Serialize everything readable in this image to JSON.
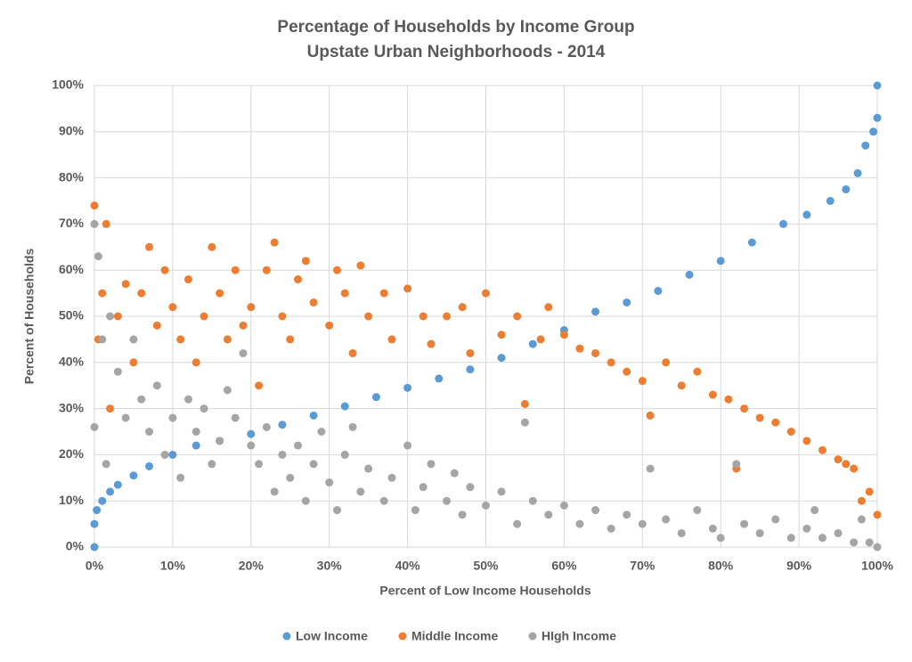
{
  "chart_data": {
    "type": "scatter",
    "title": "Percentage of Households by Income Group",
    "subtitle": "Upstate Urban Neighborhoods - 2014",
    "x_label": "Percent of Low Income Households",
    "y_label": "Percent of Households",
    "xlim": [
      0,
      100
    ],
    "ylim": [
      0,
      100
    ],
    "xticks": [
      {
        "value": 0,
        "label": "0%"
      },
      {
        "value": 10,
        "label": "10%"
      },
      {
        "value": 20,
        "label": "20%"
      },
      {
        "value": 30,
        "label": "30%"
      },
      {
        "value": 40,
        "label": "40%"
      },
      {
        "value": 50,
        "label": "50%"
      },
      {
        "value": 60,
        "label": "60%"
      },
      {
        "value": 70,
        "label": "70%"
      },
      {
        "value": 80,
        "label": "80%"
      },
      {
        "value": 90,
        "label": "90%"
      },
      {
        "value": 100,
        "label": "100%"
      }
    ],
    "yticks": [
      {
        "value": 0,
        "label": "0%"
      },
      {
        "value": 10,
        "label": "10%"
      },
      {
        "value": 20,
        "label": "20%"
      },
      {
        "value": 30,
        "label": "30%"
      },
      {
        "value": 40,
        "label": "40%"
      },
      {
        "value": 50,
        "label": "50%"
      },
      {
        "value": 60,
        "label": "60%"
      },
      {
        "value": 70,
        "label": "70%"
      },
      {
        "value": 80,
        "label": "80%"
      },
      {
        "value": 90,
        "label": "90%"
      },
      {
        "value": 100,
        "label": "100%"
      }
    ],
    "grid": true,
    "legend": "bottom",
    "series": [
      {
        "name": "Low Income",
        "color": "#5b9bd5",
        "x": [
          0,
          0,
          0.3,
          1,
          2,
          3,
          5,
          7,
          10,
          13,
          16,
          20,
          24,
          28,
          32,
          36,
          40,
          44,
          48,
          52,
          56,
          60,
          64,
          68,
          72,
          76,
          80,
          84,
          88,
          91,
          94,
          96,
          97.5,
          98.5,
          99.5,
          100,
          100
        ],
        "values": [
          0,
          5,
          8,
          10,
          12,
          13.5,
          15.5,
          17.5,
          20,
          22,
          23,
          24.5,
          26.5,
          28.5,
          30.5,
          32.5,
          34.5,
          36.5,
          38.5,
          41,
          44,
          47,
          51,
          53,
          55.5,
          59,
          62,
          66,
          70,
          72,
          75,
          77.5,
          81,
          87,
          90,
          93,
          100
        ]
      },
      {
        "name": "Middle Income",
        "color": "#ed7d31",
        "x": [
          0,
          0.5,
          1,
          1.5,
          2,
          3,
          4,
          5,
          6,
          7,
          8,
          9,
          10,
          11,
          12,
          13,
          14,
          15,
          16,
          17,
          18,
          19,
          20,
          21,
          22,
          23,
          24,
          25,
          26,
          27,
          28,
          30,
          31,
          32,
          33,
          34,
          35,
          37,
          38,
          40,
          42,
          43,
          45,
          47,
          48,
          50,
          52,
          54,
          55,
          57,
          58,
          60,
          62,
          64,
          66,
          68,
          70,
          71,
          73,
          75,
          77,
          79,
          81,
          82,
          83,
          85,
          87,
          89,
          91,
          93,
          95,
          96,
          97,
          98,
          99,
          100
        ],
        "values": [
          74,
          45,
          55,
          70,
          30,
          50,
          57,
          40,
          55,
          65,
          48,
          60,
          52,
          45,
          58,
          40,
          50,
          65,
          55,
          45,
          60,
          48,
          52,
          35,
          60,
          66,
          50,
          45,
          58,
          62,
          53,
          48,
          60,
          55,
          42,
          61,
          50,
          55,
          45,
          56,
          50,
          44,
          50,
          52,
          42,
          55,
          46,
          50,
          31,
          45,
          52,
          46,
          43,
          42,
          40,
          38,
          36,
          28.5,
          40,
          35,
          38,
          33,
          32,
          17,
          30,
          28,
          27,
          25,
          23,
          21,
          19,
          18,
          17,
          10,
          12,
          7
        ]
      },
      {
        "name": "HIgh Income",
        "color": "#a5a5a5",
        "x": [
          0,
          0,
          0.5,
          1,
          1.5,
          2,
          3,
          4,
          5,
          6,
          7,
          8,
          9,
          10,
          11,
          12,
          13,
          14,
          15,
          16,
          17,
          18,
          19,
          20,
          21,
          22,
          23,
          24,
          25,
          26,
          27,
          28,
          29,
          30,
          31,
          32,
          33,
          34,
          35,
          37,
          38,
          40,
          41,
          42,
          43,
          45,
          46,
          47,
          48,
          50,
          52,
          54,
          55,
          56,
          58,
          60,
          62,
          64,
          66,
          68,
          70,
          71,
          73,
          75,
          77,
          79,
          80,
          82,
          83,
          85,
          87,
          89,
          91,
          92,
          93,
          95,
          97,
          98,
          99,
          100
        ],
        "values": [
          70,
          26,
          63,
          45,
          18,
          50,
          38,
          28,
          45,
          32,
          25,
          35,
          20,
          28,
          15,
          32,
          25,
          30,
          18,
          23,
          34,
          28,
          42,
          22,
          18,
          26,
          12,
          20,
          15,
          22,
          10,
          18,
          25,
          14,
          8,
          20,
          26,
          12,
          17,
          10,
          15,
          22,
          8,
          13,
          18,
          10,
          16,
          7,
          13,
          9,
          12,
          5,
          27,
          10,
          7,
          9,
          5,
          8,
          4,
          7,
          5,
          17,
          6,
          3,
          8,
          4,
          2,
          18,
          5,
          3,
          6,
          2,
          4,
          8,
          2,
          3,
          1,
          6,
          1,
          0
        ]
      }
    ]
  }
}
